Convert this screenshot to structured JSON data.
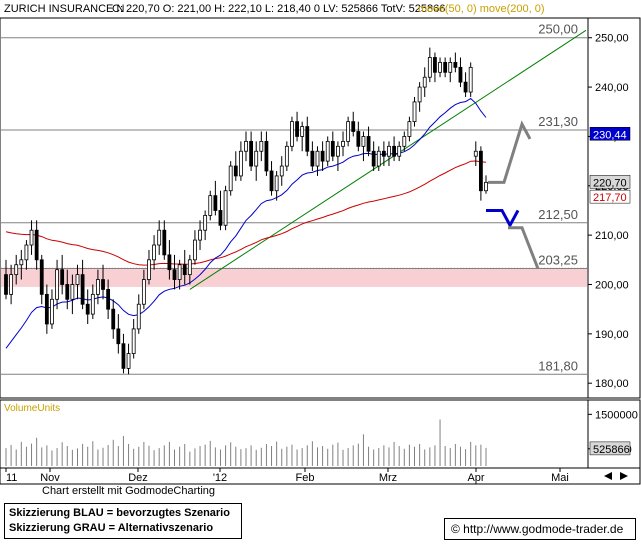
{
  "header": {
    "symbol": "ZURICH INSURANCE N",
    "quote": "C: 220,70 O: 221,00 H: 222,10 L: 218,40 0 LV: 525866 TotV: 525866",
    "ma_label": "move(50, 0) move(200, 0)"
  },
  "chart_data": {
    "type": "candlestick",
    "x_labels": [
      "11",
      "Nov",
      "Dez",
      "'12",
      "Feb",
      "Mrz",
      "Apr",
      "Mai"
    ],
    "y_ticks": [
      "250,00",
      "240,00",
      "230,00",
      "220,00",
      "210,00",
      "200,00",
      "190,00",
      "180,00"
    ],
    "ylim": [
      177,
      254
    ],
    "colors": {
      "ma50": "#0000cc",
      "ma200": "#cc0000",
      "trend": "#008000",
      "zone": "#f8d0d4",
      "bull": "#ffffff",
      "bear": "#000000",
      "scenario_blue": "#0000cc",
      "scenario_grey": "#808080"
    },
    "levels": [
      {
        "label": "250,00",
        "value": 250.0
      },
      {
        "label": "231,30",
        "value": 231.3
      },
      {
        "label": "212,50",
        "value": 212.5
      },
      {
        "label": "203,25",
        "value": 203.25
      },
      {
        "label": "181,80",
        "value": 181.8
      }
    ],
    "support_zone": [
      199.5,
      203.3
    ],
    "last_price": {
      "label": "220,70",
      "value": 220.7
    },
    "ma50": {
      "label": "230,44",
      "value": 230.44
    },
    "ma200": {
      "label": "217,70",
      "value": 217.7
    },
    "candles": [
      [
        202.0,
        205.0,
        197.0,
        198.0
      ],
      [
        198.0,
        204.0,
        196.0,
        202.0
      ],
      [
        202.0,
        206.0,
        200.0,
        204.0
      ],
      [
        204.0,
        207.0,
        201.0,
        205.0
      ],
      [
        205.0,
        209.0,
        203.0,
        208.0
      ],
      [
        208.0,
        213.0,
        206.0,
        211.0
      ],
      [
        211.0,
        213.0,
        203.0,
        205.0
      ],
      [
        205.0,
        206.0,
        196.0,
        198.0
      ],
      [
        198.0,
        200.0,
        190.0,
        192.0
      ],
      [
        192.0,
        199.0,
        191.0,
        197.0
      ],
      [
        197.0,
        205.0,
        195.0,
        203.0
      ],
      [
        203.0,
        206.0,
        198.0,
        200.0
      ],
      [
        200.0,
        203.0,
        195.0,
        197.0
      ],
      [
        197.0,
        202.0,
        194.0,
        200.0
      ],
      [
        200.0,
        204.0,
        197.0,
        202.0
      ],
      [
        202.0,
        205.0,
        195.0,
        196.0
      ],
      [
        196.0,
        199.0,
        192.0,
        194.0
      ],
      [
        194.0,
        200.0,
        193.0,
        198.0
      ],
      [
        198.0,
        203.0,
        196.0,
        201.0
      ],
      [
        201.0,
        204.0,
        197.0,
        199.0
      ],
      [
        199.0,
        201.0,
        193.0,
        195.0
      ],
      [
        195.0,
        197.0,
        189.0,
        191.0
      ],
      [
        191.0,
        194.0,
        186.0,
        188.0
      ],
      [
        188.0,
        190.0,
        182.0,
        183.0
      ],
      [
        183.0,
        188.0,
        181.8,
        186.0
      ],
      [
        186.0,
        193.0,
        185.0,
        191.0
      ],
      [
        191.0,
        198.0,
        190.0,
        196.0
      ],
      [
        196.0,
        203.0,
        195.0,
        201.0
      ],
      [
        201.0,
        207.0,
        200.0,
        205.0
      ],
      [
        205.0,
        210.0,
        203.0,
        208.0
      ],
      [
        208.0,
        213.0,
        206.0,
        211.0
      ],
      [
        211.0,
        213.0,
        205.0,
        206.0
      ],
      [
        206.0,
        209.0,
        201.0,
        203.0
      ],
      [
        203.0,
        206.0,
        199.0,
        201.0
      ],
      [
        201.0,
        205.0,
        199.0,
        204.0
      ],
      [
        204.0,
        207.0,
        200.0,
        202.0
      ],
      [
        202.0,
        206.0,
        200.0,
        205.0
      ],
      [
        205.0,
        211.0,
        204.0,
        209.0
      ],
      [
        209.0,
        213.0,
        207.0,
        211.0
      ],
      [
        211.0,
        215.0,
        209.0,
        214.0
      ],
      [
        214.0,
        219.0,
        213.0,
        218.0
      ],
      [
        218.0,
        221.0,
        214.0,
        215.0
      ],
      [
        215.0,
        219.0,
        211.0,
        212.0
      ],
      [
        212.0,
        220.0,
        211.0,
        219.0
      ],
      [
        219.0,
        225.0,
        218.0,
        224.0
      ],
      [
        224.0,
        227.0,
        221.0,
        222.0
      ],
      [
        222.0,
        229.0,
        221.0,
        227.0
      ],
      [
        227.0,
        231.0,
        225.0,
        229.0
      ],
      [
        229.0,
        231.0,
        223.0,
        224.0
      ],
      [
        224.0,
        229.0,
        221.0,
        227.0
      ],
      [
        227.0,
        231.0,
        225.0,
        229.0
      ],
      [
        229.0,
        231.0,
        222.0,
        223.0
      ],
      [
        223.0,
        225.0,
        218.0,
        219.0
      ],
      [
        219.0,
        223.0,
        217.0,
        222.0
      ],
      [
        222.0,
        226.0,
        220.0,
        224.0
      ],
      [
        224.0,
        229.0,
        223.0,
        228.0
      ],
      [
        228.0,
        234.0,
        227.0,
        233.0
      ],
      [
        233.0,
        235.0,
        229.0,
        230.0
      ],
      [
        230.0,
        233.0,
        227.0,
        232.0
      ],
      [
        232.0,
        234.0,
        226.0,
        227.0
      ],
      [
        227.0,
        229.0,
        223.0,
        224.0
      ],
      [
        224.0,
        228.0,
        222.0,
        227.0
      ],
      [
        227.0,
        229.0,
        223.0,
        225.0
      ],
      [
        225.0,
        230.0,
        224.0,
        229.0
      ],
      [
        229.0,
        231.0,
        225.0,
        226.0
      ],
      [
        226.0,
        229.0,
        223.0,
        228.0
      ],
      [
        228.0,
        231.0,
        226.0,
        229.0
      ],
      [
        229.0,
        234.0,
        228.0,
        233.0
      ],
      [
        233.0,
        235.0,
        230.0,
        231.0
      ],
      [
        231.0,
        233.0,
        227.0,
        228.0
      ],
      [
        228.0,
        231.0,
        225.0,
        230.0
      ],
      [
        230.0,
        232.0,
        226.0,
        227.0
      ],
      [
        227.0,
        229.0,
        223.0,
        224.0
      ],
      [
        224.0,
        228.0,
        223.0,
        227.0
      ],
      [
        227.0,
        229.0,
        224.0,
        226.0
      ],
      [
        226.0,
        229.0,
        224.0,
        228.0
      ],
      [
        228.0,
        230.0,
        225.0,
        226.0
      ],
      [
        226.0,
        229.0,
        225.0,
        228.0
      ],
      [
        228.0,
        231.0,
        227.0,
        230.0
      ],
      [
        230.0,
        234.0,
        229.0,
        233.0
      ],
      [
        233.0,
        238.0,
        232.0,
        237.0
      ],
      [
        237.0,
        241.0,
        235.0,
        240.0
      ],
      [
        240.0,
        244.0,
        238.0,
        242.0
      ],
      [
        242.0,
        248.0,
        241.0,
        246.0
      ],
      [
        246.0,
        247.0,
        241.0,
        243.0
      ],
      [
        243.0,
        246.0,
        242.0,
        245.0
      ],
      [
        245.0,
        246.0,
        242.0,
        243.0
      ],
      [
        243.0,
        246.0,
        241.0,
        245.0
      ],
      [
        245.0,
        247.0,
        243.0,
        244.0
      ],
      [
        244.0,
        246.0,
        240.0,
        241.0
      ],
      [
        241.0,
        243.0,
        238.0,
        239.0
      ],
      [
        239.0,
        245.0,
        238.0,
        244.0
      ],
      [
        226.0,
        229.0,
        224.0,
        227.0
      ],
      [
        227.0,
        228.0,
        217.0,
        219.0
      ],
      [
        219.0,
        222.1,
        218.4,
        220.7
      ]
    ],
    "volume_label": "VolumeUnits",
    "volume_ticks": [
      "1500000",
      "500000"
    ],
    "volume_last": "525866",
    "volume_ylim": [
      0,
      1800000
    ],
    "volumes": [
      520000,
      610000,
      480000,
      700000,
      560000,
      650000,
      820000,
      540000,
      600000,
      450000,
      520000,
      690000,
      580000,
      470000,
      510000,
      640000,
      560000,
      720000,
      480000,
      530000,
      610000,
      760000,
      580000,
      870000,
      640000,
      500000,
      560000,
      700000,
      590000,
      460000,
      520000,
      600000,
      700000,
      480000,
      560000,
      640000,
      420000,
      510000,
      580000,
      620000,
      730000,
      540000,
      480000,
      600000,
      690000,
      560000,
      490000,
      520000,
      600000,
      470000,
      530000,
      640000,
      580000,
      710000,
      500000,
      560000,
      620000,
      480000,
      520000,
      600000,
      720000,
      540000,
      580000,
      500000,
      620000,
      680000,
      470000,
      520000,
      600000,
      650000,
      920000,
      560000,
      480000,
      520000,
      600000,
      540000,
      700000,
      580000,
      500000,
      620000,
      560000,
      640000,
      480000,
      540000,
      600000,
      1350000,
      580000,
      520000,
      640000,
      560000,
      490000,
      700000,
      600000,
      620000,
      525866
    ]
  },
  "footer": {
    "credit": "Chart erstellt mit GodmodeCharting",
    "legend_blue": "Skizzierung BLAU = bevorzugtes Szenario",
    "legend_grey": "Skizzierung GRAU = Alternativszenario",
    "website": "© http://www.godmode-trader.de"
  }
}
